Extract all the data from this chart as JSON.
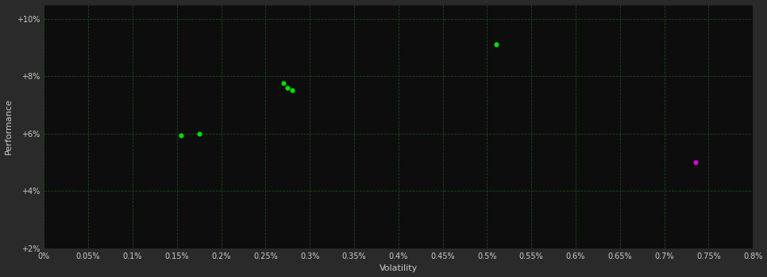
{
  "fig_bg_color": "#2a2a2a",
  "plot_bg_color": "#0d0d0d",
  "grid_color": "#1a4a1a",
  "text_color": "#cccccc",
  "xlabel": "Volatility",
  "ylabel": "Performance",
  "xlim": [
    0.0,
    0.008
  ],
  "ylim": [
    0.02,
    0.105
  ],
  "yticks": [
    0.02,
    0.04,
    0.06,
    0.08,
    0.1
  ],
  "ytick_labels": [
    "+2%",
    "+4%",
    "+6%",
    "+8%",
    "+10%"
  ],
  "xticks": [
    0.0,
    0.0005,
    0.001,
    0.0015,
    0.002,
    0.0025,
    0.003,
    0.0035,
    0.004,
    0.0045,
    0.005,
    0.0055,
    0.006,
    0.0065,
    0.007,
    0.0075,
    0.008
  ],
  "xtick_labels": [
    "0%",
    "0.05%",
    "0.1%",
    "0.15%",
    "0.2%",
    "0.25%",
    "0.3%",
    "0.35%",
    "0.4%",
    "0.45%",
    "0.5%",
    "0.55%",
    "0.6%",
    "0.65%",
    "0.7%",
    "0.75%",
    "0.8%"
  ],
  "green_points": [
    [
      0.00155,
      0.0595
    ],
    [
      0.00175,
      0.06
    ],
    [
      0.0027,
      0.0775
    ],
    [
      0.00275,
      0.076
    ],
    [
      0.0028,
      0.075
    ],
    [
      0.0051,
      0.091
    ]
  ],
  "magenta_points": [
    [
      0.00735,
      0.05
    ]
  ],
  "green_color": "#00dd00",
  "magenta_color": "#dd00dd",
  "marker_size": 20
}
